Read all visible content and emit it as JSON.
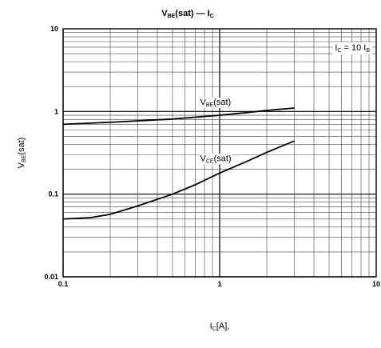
{
  "chart_data": {
    "type": "line",
    "title": {
      "main": "V",
      "sub": "BE",
      "rest": "(sat) — I",
      "sub2": "C"
    },
    "xlabel": {
      "main": "I",
      "sub": "C",
      "rest": "[A],"
    },
    "ylabel": {
      "main": "V",
      "sub": "BE",
      "rest": "(sat)"
    },
    "x_scale": "log",
    "y_scale": "log",
    "xlim": [
      0.1,
      10
    ],
    "ylim": [
      0.01,
      10
    ],
    "x_ticks": [
      0.1,
      1,
      10
    ],
    "x_tick_labels": [
      "0.1",
      "1",
      "10"
    ],
    "y_ticks": [
      0.01,
      0.1,
      1,
      10
    ],
    "y_tick_labels": [
      "0.01",
      "0.1",
      "1",
      "10"
    ],
    "grid": true,
    "condition_box": {
      "parts": [
        "I",
        "C",
        " = 10 I",
        "B"
      ]
    },
    "series": [
      {
        "label": {
          "main": "V",
          "sub": "BE",
          "rest": "(sat)"
        },
        "x": [
          0.1,
          0.2,
          0.3,
          0.5,
          1.0,
          1.5,
          2.0,
          3.0
        ],
        "y": [
          0.7,
          0.74,
          0.77,
          0.81,
          0.9,
          0.97,
          1.03,
          1.1
        ]
      },
      {
        "label": {
          "main": "V",
          "sub": "CE",
          "rest": "(sat)"
        },
        "x": [
          0.1,
          0.15,
          0.2,
          0.3,
          0.5,
          0.7,
          1.0,
          1.5,
          2.0,
          3.0
        ],
        "y": [
          0.05,
          0.052,
          0.057,
          0.072,
          0.1,
          0.13,
          0.18,
          0.25,
          0.32,
          0.44
        ]
      }
    ]
  }
}
